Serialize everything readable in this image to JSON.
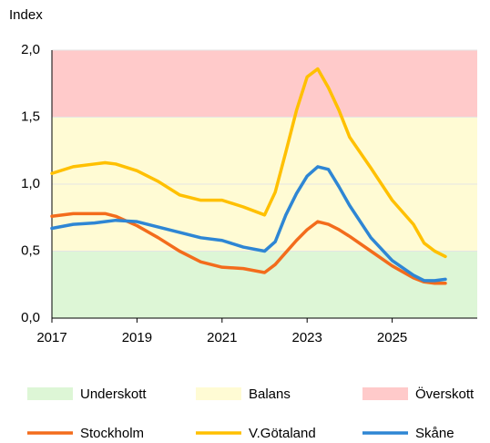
{
  "chart_data": {
    "type": "line",
    "ylabel": "Index",
    "x": [
      2017,
      2017.5,
      2018,
      2018.25,
      2018.5,
      2019,
      2019.5,
      2020,
      2020.5,
      2021,
      2021.5,
      2022,
      2022.25,
      2022.5,
      2022.75,
      2023,
      2023.25,
      2023.5,
      2023.75,
      2024,
      2024.5,
      2025,
      2025.5,
      2025.75,
      2026,
      2026.25
    ],
    "series": [
      {
        "name": "Stockholm",
        "color": "#f36c1c",
        "values": [
          0.76,
          0.78,
          0.78,
          0.78,
          0.76,
          0.69,
          0.6,
          0.5,
          0.42,
          0.38,
          0.37,
          0.34,
          0.4,
          0.49,
          0.58,
          0.66,
          0.72,
          0.7,
          0.66,
          0.61,
          0.5,
          0.39,
          0.3,
          0.27,
          0.26,
          0.26
        ]
      },
      {
        "name": "V.Götaland",
        "color": "#ffc000",
        "values": [
          1.08,
          1.13,
          1.15,
          1.16,
          1.15,
          1.1,
          1.02,
          0.92,
          0.88,
          0.88,
          0.83,
          0.77,
          0.94,
          1.24,
          1.55,
          1.8,
          1.86,
          1.72,
          1.55,
          1.35,
          1.12,
          0.88,
          0.7,
          0.56,
          0.5,
          0.46
        ]
      },
      {
        "name": "Skåne",
        "color": "#2e86d4",
        "values": [
          0.67,
          0.7,
          0.71,
          0.72,
          0.73,
          0.72,
          0.68,
          0.64,
          0.6,
          0.58,
          0.53,
          0.5,
          0.57,
          0.77,
          0.93,
          1.06,
          1.13,
          1.11,
          0.98,
          0.84,
          0.6,
          0.43,
          0.32,
          0.28,
          0.28,
          0.29
        ]
      }
    ],
    "bands": [
      {
        "name": "Underskott",
        "color": "#ddf6d6",
        "from": 0,
        "to": 0.5
      },
      {
        "name": "Balans",
        "color": "#fffbd4",
        "from": 0.5,
        "to": 1.5
      },
      {
        "name": "Överskott",
        "color": "#ffcaca",
        "from": 1.5,
        "to": 2.0
      }
    ],
    "xlim": [
      2017,
      2027
    ],
    "xticks": [
      2017,
      2019,
      2021,
      2023,
      2025
    ],
    "ylim": [
      0,
      2.0
    ],
    "yticks": [
      {
        "value": 0,
        "label": "0,0"
      },
      {
        "value": 0.5,
        "label": "0,5"
      },
      {
        "value": 1.0,
        "label": "1,0"
      },
      {
        "value": 1.5,
        "label": "1,5"
      },
      {
        "value": 2.0,
        "label": "2,0"
      }
    ],
    "grid": true
  }
}
